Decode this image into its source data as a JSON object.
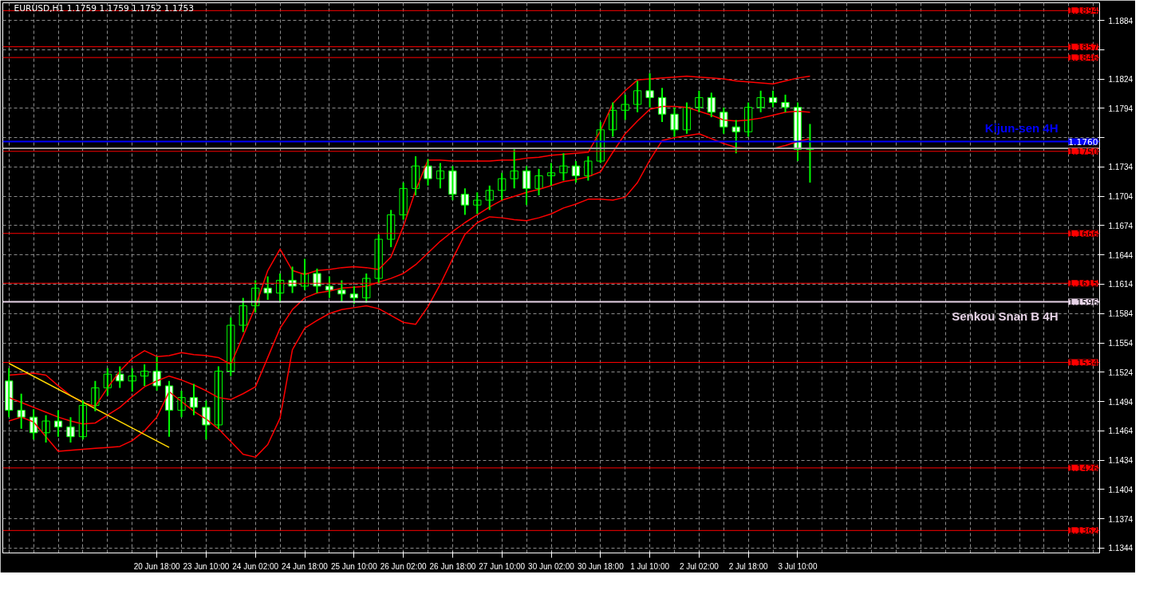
{
  "chart_data": {
    "type": "candlestick",
    "title": "EURUSD,H1  1.1759 1.1759 1.1752 1.1753",
    "categories": [
      null,
      null,
      null,
      null,
      null,
      null,
      null,
      null,
      null,
      null,
      null,
      null,
      "20 Jun 18:00",
      null,
      null,
      null,
      "23 Jun 10:00",
      null,
      null,
      null,
      "24 Jun 02:00",
      null,
      null,
      null,
      "24 Jun 18:00",
      null,
      null,
      null,
      "25 Jun 10:00",
      null,
      null,
      null,
      "26 Jun 02:00",
      null,
      null,
      null,
      "26 Jun 18:00",
      null,
      null,
      null,
      "27 Jun 10:00",
      null,
      null,
      null,
      "30 Jun 02:00",
      null,
      null,
      null,
      "30 Jun 18:00",
      null,
      null,
      null,
      "1 Jul 10:00",
      null,
      null,
      null,
      "2 Jul 02:00",
      null,
      null,
      null,
      "2 Jul 18:00",
      null,
      null,
      null,
      "3 Jul 10:00",
      null,
      null,
      null,
      null,
      null,
      null,
      null,
      null,
      null,
      null,
      null,
      null,
      null,
      null,
      null,
      null,
      null,
      null,
      null,
      null,
      null,
      null,
      null,
      null
    ],
    "ylim": [
      1.1339,
      1.1902
    ],
    "yticks": [
      {
        "value": 1.1344,
        "label": "1.1344"
      },
      {
        "value": 1.1374,
        "label": "1.1374"
      },
      {
        "value": 1.1404,
        "label": "1.1404"
      },
      {
        "value": 1.1434,
        "label": "1.1434"
      },
      {
        "value": 1.1464,
        "label": "1.1464"
      },
      {
        "value": 1.1494,
        "label": "1.1494"
      },
      {
        "value": 1.1524,
        "label": "1.1524"
      },
      {
        "value": 1.1554,
        "label": "1.1554"
      },
      {
        "value": 1.1584,
        "label": "1.1584"
      },
      {
        "value": 1.1614,
        "label": "1.1614"
      },
      {
        "value": 1.1644,
        "label": "1.1644"
      },
      {
        "value": 1.1674,
        "label": "1.1674"
      },
      {
        "value": 1.1704,
        "label": "1.1704"
      },
      {
        "value": 1.1734,
        "label": "1.1734"
      },
      {
        "value": 1.1764,
        "label": null
      },
      {
        "value": 1.1794,
        "label": "1.1794"
      },
      {
        "value": 1.1824,
        "label": "1.1824"
      },
      {
        "value": 1.1854,
        "label": null
      },
      {
        "value": 1.1884,
        "label": "1.1884"
      }
    ],
    "grid": true,
    "series": [
      {
        "type": "line",
        "color": "#ff0000",
        "values": [
          1.1521,
          1.1522,
          1.1523,
          1.1521,
          1.151,
          1.15,
          1.1493,
          1.1489,
          1.1508,
          1.1525,
          1.1538,
          1.1546,
          1.154,
          1.1541,
          1.1544,
          1.1542,
          1.1541,
          1.1539,
          1.1532,
          1.1561,
          1.1591,
          1.1628,
          1.165,
          1.1628,
          1.1624,
          1.1628,
          1.1629,
          1.1631,
          1.1632,
          1.1631,
          1.1629,
          1.1642,
          1.1673,
          1.171,
          1.1741,
          1.1741,
          1.174,
          1.174,
          1.174,
          1.174,
          1.1741,
          1.1741,
          1.1743,
          1.1744,
          1.1746,
          1.1747,
          1.1748,
          1.1749,
          1.1771,
          1.1799,
          1.1812,
          1.1823,
          1.1824,
          1.1825,
          1.1826,
          1.1827,
          1.1826,
          1.1825,
          1.1824,
          1.1822,
          1.1821,
          1.182,
          1.1819,
          1.1822,
          1.1825,
          1.1827,
          null,
          null,
          null,
          null,
          null,
          null,
          null,
          null,
          null,
          null,
          null,
          null,
          null,
          null,
          null,
          null,
          null,
          null,
          null,
          null,
          null,
          null,
          null
        ]
      },
      {
        "type": "line",
        "color": "#ff0000",
        "values": [
          1.1498,
          1.1493,
          1.1488,
          1.1483,
          1.1478,
          1.1474,
          1.1471,
          1.1472,
          1.148,
          1.1488,
          1.1499,
          1.1509,
          1.1515,
          1.152,
          1.1516,
          1.1511,
          1.1505,
          1.1498,
          1.1496,
          1.1502,
          1.1509,
          1.1539,
          1.1569,
          1.1588,
          1.16,
          1.1605,
          1.1607,
          1.161,
          1.1611,
          1.1612,
          1.1616,
          1.162,
          1.1625,
          1.1634,
          1.1646,
          1.1658,
          1.1668,
          1.1677,
          1.1685,
          1.1693,
          1.17,
          1.1704,
          1.1708,
          1.1711,
          1.1715,
          1.1719,
          1.1721,
          1.1724,
          1.1729,
          1.1749,
          1.1768,
          1.1781,
          1.1793,
          1.1796,
          1.1796,
          1.1795,
          1.1791,
          1.1787,
          1.1782,
          1.1781,
          1.1782,
          1.1784,
          1.1787,
          1.179,
          1.1791,
          1.179,
          null,
          null,
          null,
          null,
          null,
          null,
          null,
          null,
          null,
          null,
          null,
          null,
          null,
          null,
          null,
          null,
          null,
          null,
          null,
          null,
          null,
          null,
          null
        ]
      },
      {
        "type": "line",
        "color": "#ff0000",
        "values": [
          1.1474,
          1.1478,
          1.1473,
          1.1458,
          1.1443,
          1.1444,
          1.1445,
          1.1446,
          1.1447,
          1.1448,
          1.1454,
          1.1464,
          1.1478,
          1.1504,
          1.1494,
          1.1484,
          1.1476,
          1.1466,
          1.1453,
          1.144,
          1.1437,
          1.145,
          1.1477,
          1.1547,
          1.1569,
          1.1577,
          1.1584,
          1.1588,
          1.159,
          1.1592,
          1.1589,
          1.1582,
          1.1575,
          1.1573,
          1.1591,
          1.1614,
          1.164,
          1.1665,
          1.1677,
          1.1683,
          1.1682,
          1.168,
          1.1679,
          1.1682,
          1.1686,
          1.1692,
          1.1696,
          1.1701,
          1.1701,
          1.17,
          1.1703,
          1.1718,
          1.1741,
          1.1761,
          1.1764,
          1.1766,
          1.1768,
          1.1763,
          1.1758,
          1.1754,
          1.1753,
          1.1753,
          1.1753,
          1.1756,
          1.176,
          1.1763,
          null,
          null,
          null,
          null,
          null,
          null,
          null,
          null,
          null,
          null,
          null,
          null,
          null,
          null,
          null,
          null,
          null,
          null,
          null,
          null,
          null,
          null,
          null
        ]
      },
      {
        "type": "line",
        "color": "#ffd700",
        "values": [
          1.1533,
          null,
          null,
          null,
          null,
          null,
          null,
          null,
          null,
          null,
          null,
          null,
          null,
          1.1447,
          null,
          null,
          null,
          null,
          null,
          null,
          null,
          null,
          null,
          null,
          null,
          null,
          null,
          null,
          null,
          null,
          null,
          null,
          null,
          null,
          null,
          null,
          null,
          null,
          null,
          null,
          null,
          null,
          null,
          null,
          null,
          null,
          null,
          null,
          null,
          null,
          null,
          null,
          null,
          null,
          null,
          null,
          null,
          null,
          null,
          null,
          null,
          null,
          null,
          null,
          null,
          null,
          null,
          null,
          null,
          null,
          null,
          null,
          null,
          null,
          null,
          null,
          null,
          null,
          null,
          null,
          null,
          null,
          null,
          null,
          null,
          null,
          null,
          null,
          null
        ]
      },
      {
        "color": "#00ff00",
        "ohlc": [
          [
            1.1515,
            1.1528,
            1.1478,
            1.1485
          ],
          [
            1.1485,
            1.1502,
            1.1466,
            1.1478
          ],
          [
            1.1478,
            1.1486,
            1.1455,
            1.1462
          ],
          [
            1.1462,
            1.148,
            1.1452,
            1.1474
          ],
          [
            1.1474,
            1.1485,
            1.1458,
            1.1468
          ],
          [
            1.1468,
            1.1478,
            1.1452,
            1.1458
          ],
          [
            1.1458,
            1.1495,
            1.1455,
            1.149
          ],
          [
            1.149,
            1.1515,
            1.1484,
            1.1508
          ],
          [
            1.1508,
            1.1528,
            1.15,
            1.1522
          ],
          [
            1.1522,
            1.153,
            1.1508,
            1.1515
          ],
          [
            1.1515,
            1.1528,
            1.1504,
            1.152
          ],
          [
            1.152,
            1.1532,
            1.151,
            1.1525
          ],
          [
            1.1525,
            1.154,
            1.1505,
            1.151
          ],
          [
            1.151,
            1.1515,
            1.1458,
            1.1485
          ],
          [
            1.1485,
            1.1505,
            1.1478,
            1.1498
          ],
          [
            1.1498,
            1.1512,
            1.148,
            1.1488
          ],
          [
            1.1488,
            1.1495,
            1.1455,
            1.147
          ],
          [
            1.147,
            1.153,
            1.1466,
            1.1525
          ],
          [
            1.1525,
            1.158,
            1.152,
            1.1572
          ],
          [
            1.1572,
            1.16,
            1.1565,
            1.1592
          ],
          [
            1.1592,
            1.1618,
            1.1585,
            1.161
          ],
          [
            1.161,
            1.1622,
            1.1598,
            1.1605
          ],
          [
            1.1605,
            1.1625,
            1.1595,
            1.1618
          ],
          [
            1.1618,
            1.1632,
            1.1605,
            1.1612
          ],
          [
            1.1612,
            1.164,
            1.1608,
            1.1625
          ],
          [
            1.1625,
            1.163,
            1.1605,
            1.1612
          ],
          [
            1.1612,
            1.1622,
            1.16,
            1.1608
          ],
          [
            1.1608,
            1.1618,
            1.1596,
            1.1604
          ],
          [
            1.1604,
            1.1612,
            1.1594,
            1.16
          ],
          [
            1.16,
            1.1625,
            1.1595,
            1.162
          ],
          [
            1.162,
            1.1665,
            1.1615,
            1.166
          ],
          [
            1.166,
            1.169,
            1.1652,
            1.1685
          ],
          [
            1.1685,
            1.1718,
            1.168,
            1.1712
          ],
          [
            1.1712,
            1.1745,
            1.1705,
            1.1735
          ],
          [
            1.1735,
            1.1742,
            1.1715,
            1.1722
          ],
          [
            1.1722,
            1.1738,
            1.1712,
            1.173
          ],
          [
            1.173,
            1.1735,
            1.17,
            1.1706
          ],
          [
            1.1706,
            1.1712,
            1.1685,
            1.1695
          ],
          [
            1.1695,
            1.1708,
            1.1686,
            1.17
          ],
          [
            1.17,
            1.1715,
            1.169,
            1.171
          ],
          [
            1.171,
            1.1728,
            1.17,
            1.1722
          ],
          [
            1.1722,
            1.1752,
            1.1712,
            1.173
          ],
          [
            1.173,
            1.1735,
            1.1695,
            1.1712
          ],
          [
            1.1712,
            1.1732,
            1.1705,
            1.1725
          ],
          [
            1.1725,
            1.1738,
            1.1715,
            1.1728
          ],
          [
            1.1728,
            1.1748,
            1.172,
            1.1735
          ],
          [
            1.1735,
            1.174,
            1.1718,
            1.1725
          ],
          [
            1.1725,
            1.1745,
            1.172,
            1.174
          ],
          [
            1.174,
            1.178,
            1.1738,
            1.1772
          ],
          [
            1.1772,
            1.18,
            1.1765,
            1.1792
          ],
          [
            1.1792,
            1.1808,
            1.1782,
            1.1798
          ],
          [
            1.1798,
            1.1822,
            1.179,
            1.1812
          ],
          [
            1.1812,
            1.183,
            1.1795,
            1.1805
          ],
          [
            1.1805,
            1.1815,
            1.178,
            1.1788
          ],
          [
            1.1788,
            1.1795,
            1.1765,
            1.1772
          ],
          [
            1.1772,
            1.18,
            1.1768,
            1.1795
          ],
          [
            1.1795,
            1.1812,
            1.179,
            1.1805
          ],
          [
            1.1805,
            1.181,
            1.1785,
            1.179
          ],
          [
            1.179,
            1.1795,
            1.1768,
            1.1775
          ],
          [
            1.1775,
            1.1782,
            1.1748,
            1.177
          ],
          [
            1.177,
            1.18,
            1.1765,
            1.1795
          ],
          [
            1.1795,
            1.1812,
            1.179,
            1.1805
          ],
          [
            1.1805,
            1.1812,
            1.1795,
            1.18
          ],
          [
            1.18,
            1.1808,
            1.179,
            1.1795
          ],
          [
            1.1795,
            1.18,
            1.174,
            1.1752
          ],
          [
            1.1752,
            1.1778,
            1.1718,
            1.1753
          ],
          null,
          null,
          null,
          null,
          null,
          null,
          null,
          null,
          null,
          null,
          null,
          null,
          null,
          null,
          null,
          null,
          null,
          null,
          null,
          null,
          null,
          null,
          null
        ]
      }
    ],
    "ref_lines": [
      {
        "axis": "y",
        "value": 1.1894,
        "label": "1.1894",
        "color": "#ff0000"
      },
      {
        "axis": "y",
        "value": 1.1857,
        "label": "1.1857",
        "color": "#ff0000"
      },
      {
        "axis": "y",
        "value": 1.1846,
        "label": "1.1846",
        "color": "#ff0000"
      },
      {
        "axis": "y",
        "value": 1.176,
        "label": "1.1760",
        "color": "#0000ff"
      },
      {
        "axis": "y",
        "value": 1.1753,
        "label": null,
        "color": "#a0a0a0"
      },
      {
        "axis": "y",
        "value": 1.175,
        "label": "1.1750",
        "color": "#ff0000"
      },
      {
        "axis": "y",
        "value": 1.1666,
        "label": "1.1666",
        "color": "#ff0000"
      },
      {
        "axis": "y",
        "value": 1.1615,
        "label": "1.1615",
        "color": "#ff0000"
      },
      {
        "axis": "y",
        "value": 1.1596,
        "label": "1.1596",
        "color": "#e6d2e6"
      },
      {
        "axis": "y",
        "value": 1.1534,
        "label": "1.1534",
        "color": "#ff0000"
      },
      {
        "axis": "y",
        "value": 1.1426,
        "label": "1.1426",
        "color": "#ff0000"
      },
      {
        "axis": "y",
        "value": 1.1362,
        "label": "1.1362",
        "color": "#ff0000"
      }
    ],
    "annotations": [
      {
        "text": "Kijun-sen 4H",
        "y": 1.176
      },
      {
        "text": "Senkou Snan B 4H",
        "y": 1.1596
      }
    ]
  }
}
